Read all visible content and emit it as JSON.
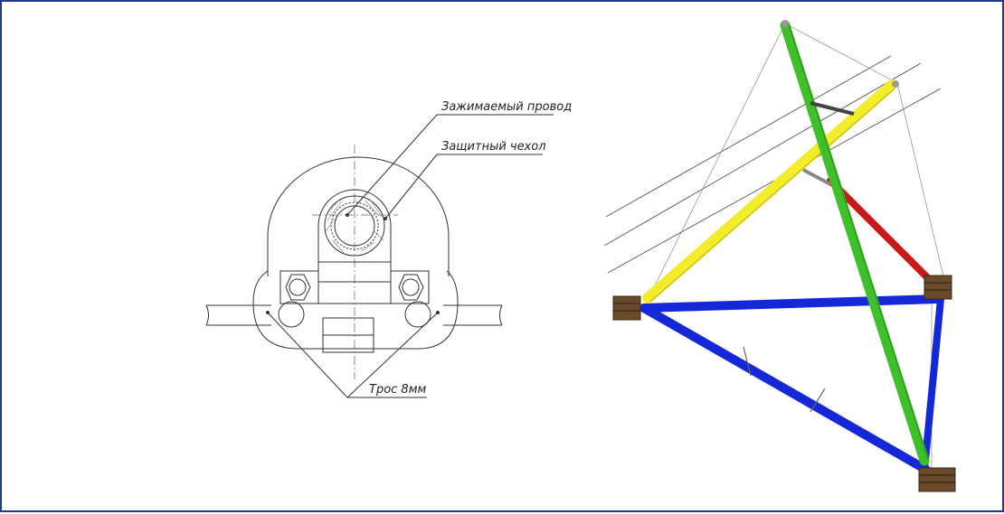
{
  "labels": {
    "clamped_wire": "Зажимаемый провод",
    "protective_cover": "Защитный чехол",
    "cable": "Трос 8мм"
  },
  "colors": {
    "frame_border": "#1f3c88",
    "green_mast": "#3fbf2a",
    "yellow_boom": "#f2ec2a",
    "red_brace": "#c81a1a",
    "blue_frame": "#1428d8",
    "line": "#333333"
  }
}
